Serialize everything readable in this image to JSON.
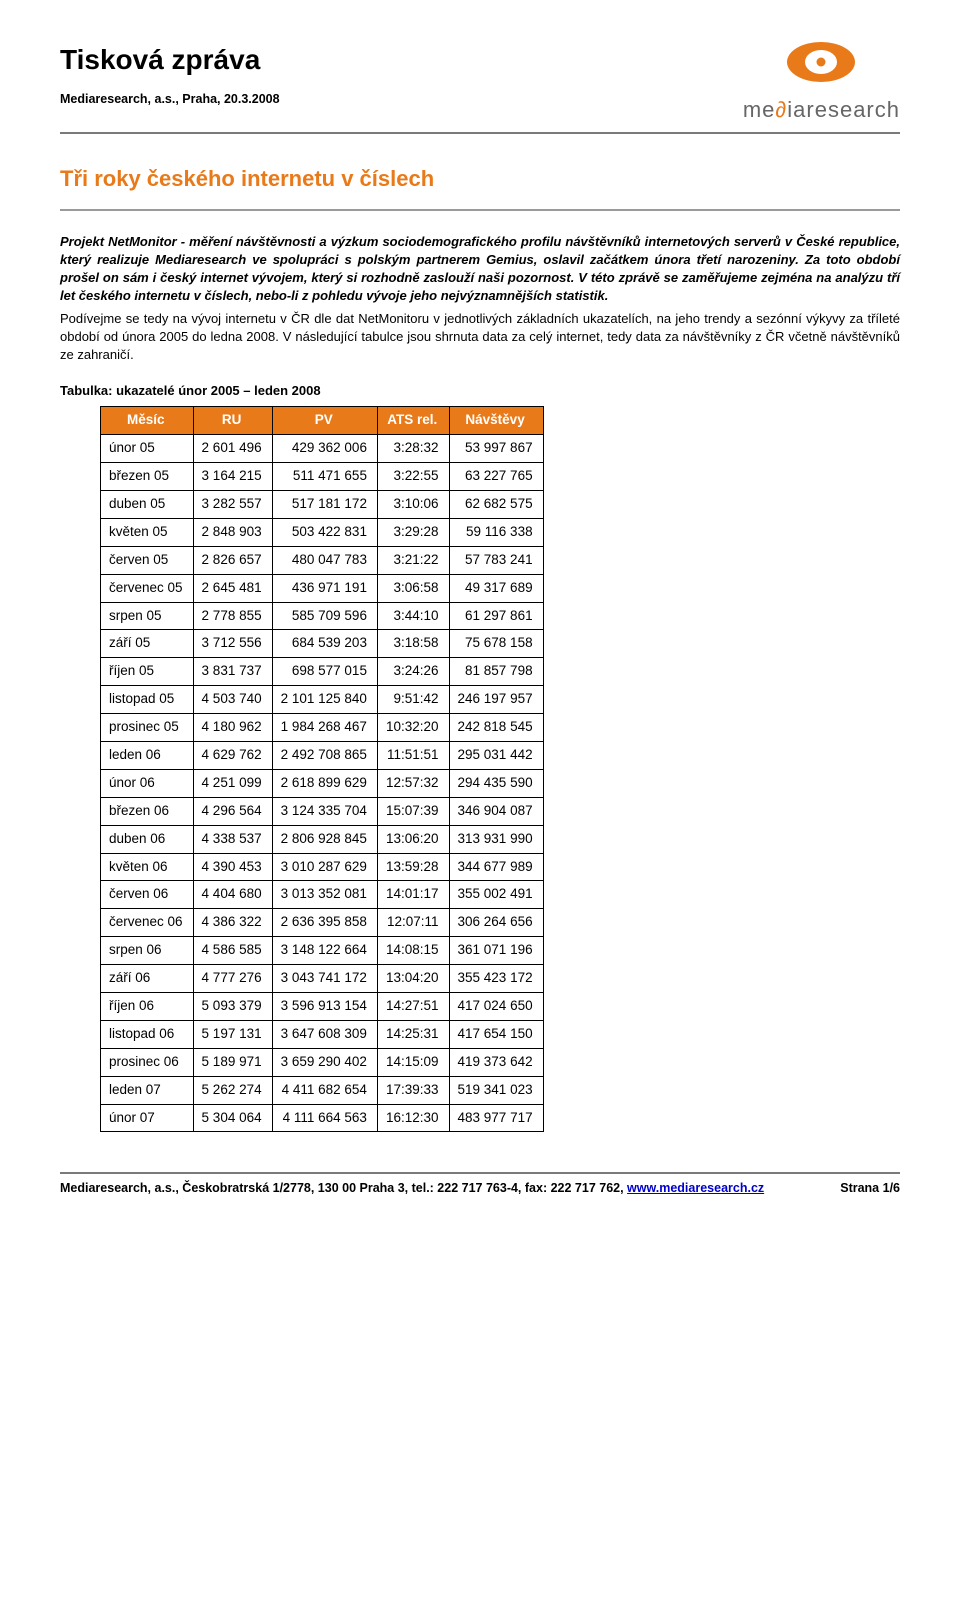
{
  "header": {
    "title": "Tisková zpráva",
    "subline": "Mediaresearch, a.s., Praha, 20.3.2008",
    "logo_text_prefix": "me",
    "logo_text_accent": "∂",
    "logo_text_suffix": "iaresearch"
  },
  "doc": {
    "heading": "Tři roky českého internetu v číslech",
    "lead": "Projekt NetMonitor - měření návštěvnosti a výzkum sociodemografického profilu návštěvníků internetových serverů v České republice, který realizuje Mediaresearch ve spolupráci s polským partnerem Gemius, oslavil začátkem února třetí narozeniny. Za toto období prošel on sám i český internet vývojem, který si rozhodně zaslouží naši pozornost. V této zprávě se zaměřujeme zejména na analýzu tří let českého internetu v číslech, nebo-li z pohledu vývoje jeho nejvýznamnějších statistik.",
    "body1": "Podívejme se tedy na vývoj internetu v ČR dle dat NetMonitoru v jednotlivých základních ukazatelích, na jeho trendy a sezónní výkyvy za tříleté období od února 2005 do ledna 2008. V následující tabulce jsou shrnuta data za celý internet, tedy data za návštěvníky z ČR včetně návštěvníků ze zahraničí."
  },
  "table": {
    "caption": "Tabulka: ukazatelé únor 2005 – leden 2008",
    "columns": [
      "Měsíc",
      "RU",
      "PV",
      "ATS rel.",
      "Návštěvy"
    ],
    "rows": [
      [
        "únor 05",
        "2 601 496",
        "429 362 006",
        "3:28:32",
        "53 997 867"
      ],
      [
        "březen 05",
        "3 164 215",
        "511 471 655",
        "3:22:55",
        "63 227 765"
      ],
      [
        "duben 05",
        "3 282 557",
        "517 181 172",
        "3:10:06",
        "62 682 575"
      ],
      [
        "květen 05",
        "2 848 903",
        "503 422 831",
        "3:29:28",
        "59 116 338"
      ],
      [
        "červen 05",
        "2 826 657",
        "480 047 783",
        "3:21:22",
        "57 783 241"
      ],
      [
        "červenec 05",
        "2 645 481",
        "436 971 191",
        "3:06:58",
        "49 317 689"
      ],
      [
        "srpen 05",
        "2 778 855",
        "585 709 596",
        "3:44:10",
        "61 297 861"
      ],
      [
        "září 05",
        "3 712 556",
        "684 539 203",
        "3:18:58",
        "75 678 158"
      ],
      [
        "říjen 05",
        "3 831 737",
        "698 577 015",
        "3:24:26",
        "81 857 798"
      ],
      [
        "listopad 05",
        "4 503 740",
        "2 101 125 840",
        "9:51:42",
        "246 197 957"
      ],
      [
        "prosinec 05",
        "4 180 962",
        "1 984 268 467",
        "10:32:20",
        "242 818 545"
      ],
      [
        "leden 06",
        "4 629 762",
        "2 492 708 865",
        "11:51:51",
        "295 031 442"
      ],
      [
        "únor 06",
        "4 251 099",
        "2 618 899 629",
        "12:57:32",
        "294 435 590"
      ],
      [
        "březen 06",
        "4 296 564",
        "3 124 335 704",
        "15:07:39",
        "346 904 087"
      ],
      [
        "duben 06",
        "4 338 537",
        "2 806 928 845",
        "13:06:20",
        "313 931 990"
      ],
      [
        "květen 06",
        "4 390 453",
        "3 010 287 629",
        "13:59:28",
        "344 677 989"
      ],
      [
        "červen 06",
        "4 404 680",
        "3 013 352 081",
        "14:01:17",
        "355 002 491"
      ],
      [
        "červenec 06",
        "4 386 322",
        "2 636 395 858",
        "12:07:11",
        "306 264 656"
      ],
      [
        "srpen 06",
        "4 586 585",
        "3 148 122 664",
        "14:08:15",
        "361 071 196"
      ],
      [
        "září 06",
        "4 777 276",
        "3 043 741 172",
        "13:04:20",
        "355 423 172"
      ],
      [
        "říjen 06",
        "5 093 379",
        "3 596 913 154",
        "14:27:51",
        "417 024 650"
      ],
      [
        "listopad 06",
        "5 197 131",
        "3 647 608 309",
        "14:25:31",
        "417 654 150"
      ],
      [
        "prosinec 06",
        "5 189 971",
        "3 659 290 402",
        "14:15:09",
        "419 373 642"
      ],
      [
        "leden 07",
        "5 262 274",
        "4 411 682 654",
        "17:39:33",
        "519 341 023"
      ],
      [
        "únor 07",
        "5 304 064",
        "4 111 664 563",
        "16:12:30",
        "483 977 717"
      ]
    ]
  },
  "footer": {
    "line1": "Mediaresearch, a.s., Českobratrská 1/2778, 130 00 Praha 3, tel.: 222 717 763-4, fax: 222 717 762, ",
    "link_text": "www.mediaresearch.cz",
    "page": "Strana 1/6"
  },
  "colors": {
    "accent": "#e97a1a",
    "rule": "#7a7a7a",
    "link": "#0000cc",
    "header_bg": "#e97a1a",
    "header_fg": "#ffffff",
    "text": "#000000",
    "background": "#ffffff"
  }
}
